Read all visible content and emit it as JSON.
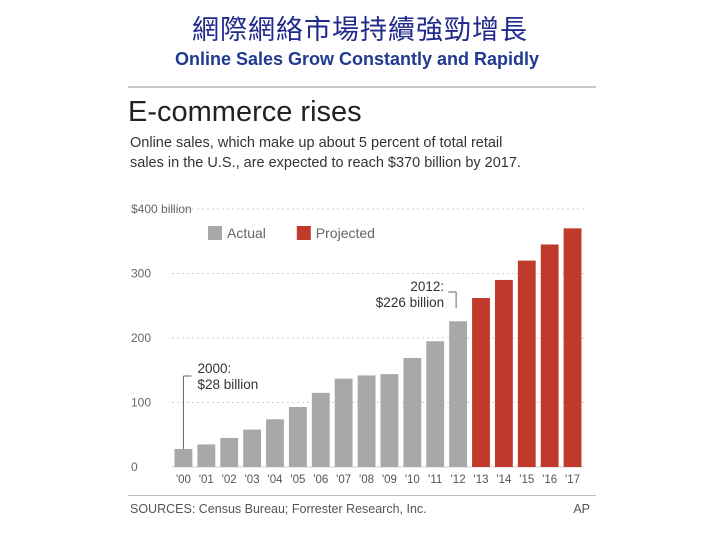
{
  "slide": {
    "title_cn": "網際網絡市場持續強勁增長",
    "title_en": "Online Sales Grow Constantly and Rapidly"
  },
  "sources": "SOURCES: Census Bureau; Forrester Research, Inc.",
  "credit": "AP",
  "chart_data": {
    "type": "bar",
    "title": "E-commerce rises",
    "subtitle_lines": [
      "Online sales, which make up about 5 percent of total retail",
      "sales in the U.S., are expected to reach $370 billion by 2017."
    ],
    "categories": [
      "'00",
      "'01",
      "'02",
      "'03",
      "'04",
      "'05",
      "'06",
      "'07",
      "'08",
      "'09",
      "'10",
      "'11",
      "'12",
      "'13",
      "'14",
      "'15",
      "'16",
      "'17"
    ],
    "series": [
      {
        "name": "Actual",
        "color": "#a8a8a8",
        "values": [
          28,
          35,
          45,
          58,
          74,
          93,
          115,
          137,
          142,
          144,
          169,
          195,
          226,
          null,
          null,
          null,
          null,
          null
        ]
      },
      {
        "name": "Projected",
        "color": "#bf3a2b",
        "values": [
          null,
          null,
          null,
          null,
          null,
          null,
          null,
          null,
          null,
          null,
          null,
          null,
          null,
          262,
          290,
          320,
          345,
          370
        ]
      }
    ],
    "ylim": [
      0,
      400
    ],
    "y_ticks": [
      0,
      100,
      200,
      300,
      400
    ],
    "y_tick_labels": [
      "0",
      "100",
      "200",
      "300",
      "$400 billion"
    ],
    "grid": true,
    "legend_position": "top-left",
    "annotations": [
      {
        "category": "'00",
        "lines": [
          "2000:",
          "$28 billion"
        ]
      },
      {
        "category": "'12",
        "lines": [
          "2012:",
          "$226 billion"
        ]
      }
    ]
  }
}
